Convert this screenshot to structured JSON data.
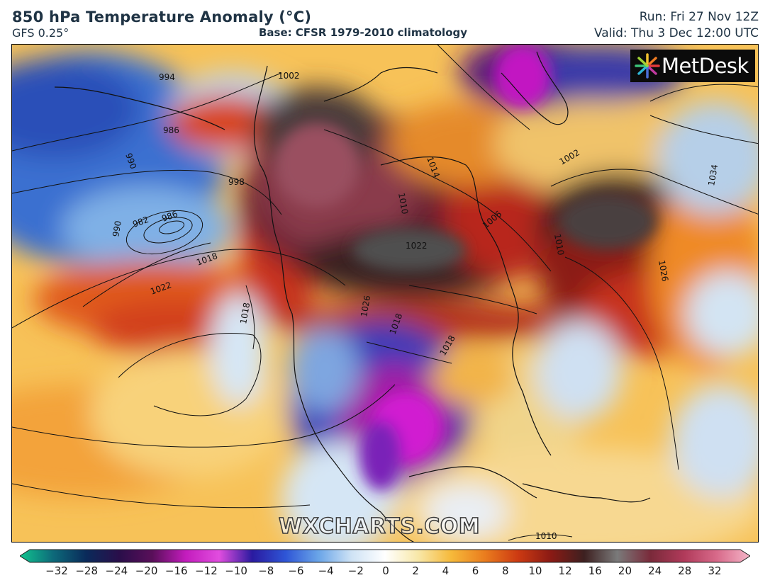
{
  "header": {
    "title": "850 hPa Temperature Anomaly (°C)",
    "model": "GFS 0.25°",
    "base": "Base: CFSR 1979-2010 climatology",
    "run": "Run: Fri 27 Nov 12Z",
    "valid": "Valid: Thu 3 Dec 12:00 UTC"
  },
  "logo": {
    "text": "MetDesk",
    "icon": "metdesk-star-icon"
  },
  "watermark": "WXCHARTS.COM",
  "contours": {
    "label_values": [
      "994",
      "986",
      "990",
      "998",
      "1002",
      "1006",
      "1010",
      "1014",
      "982",
      "986",
      "990",
      "1018",
      "1022",
      "1018",
      "1022",
      "1010",
      "1026",
      "1034",
      "1018",
      "1002",
      "1026",
      "1018",
      "1010"
    ]
  },
  "colorbar": {
    "unit": "°C",
    "ticks": [
      "−32",
      "−28",
      "−24",
      "−20",
      "−16",
      "−12",
      "−10",
      "−8",
      "−6",
      "−4",
      "−2",
      "0",
      "2",
      "4",
      "6",
      "8",
      "10",
      "12",
      "16",
      "20",
      "24",
      "28",
      "32"
    ],
    "colors": [
      "#11c48e",
      "#0d6a7a",
      "#0a2a5a",
      "#2a0e4a",
      "#5a0f5a",
      "#c31cbd",
      "#e14ddf",
      "#2a1aa0",
      "#2e55d6",
      "#6aa5e8",
      "#cfe3f5",
      "#ffffff",
      "#f8e8a8",
      "#f6b93a",
      "#ea7d1e",
      "#cd3a12",
      "#8a1a14",
      "#3d2020",
      "#7a7a7a",
      "#7a2a3a",
      "#b03a5a",
      "#d86a8a",
      "#f5b5c8"
    ]
  }
}
